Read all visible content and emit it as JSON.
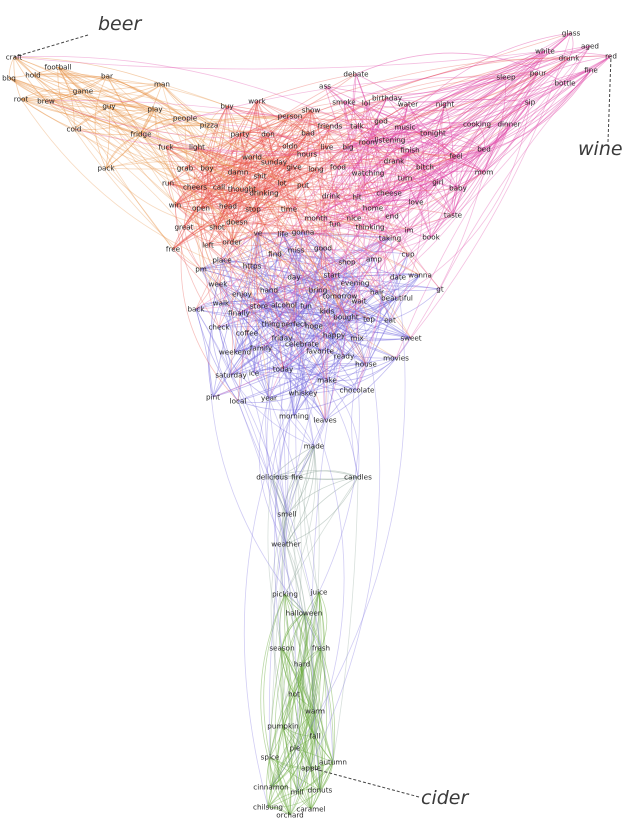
{
  "anchors": [
    {
      "label": "beer",
      "color": "#e8954a",
      "node": "craft"
    },
    {
      "label": "wine",
      "color": "#e04aa8",
      "node": "red"
    },
    {
      "label": "cider",
      "color": "#6aaa3e",
      "node": "apple"
    }
  ],
  "colors": {
    "beer": "#e8954a",
    "red": "#e8504a",
    "pink": "#e04aa8",
    "blue": "#7b6fe0",
    "grey": "#8ea59a",
    "green": "#6aaa3e"
  },
  "words": [
    "craft",
    "football",
    "hold",
    "bbq",
    "game",
    "root",
    "brew",
    "bar",
    "man",
    "guy",
    "cold",
    "play",
    "people",
    "pizza",
    "fridge",
    "fuck",
    "light",
    "pack",
    "buy",
    "work",
    "ass",
    "debate",
    "smoke",
    "lol",
    "birthday",
    "water",
    "night",
    "show",
    "person",
    "god",
    "friends",
    "talk",
    "music",
    "party",
    "don",
    "bad",
    "room",
    "listening",
    "tonight",
    "finish",
    "feel",
    "bed",
    "cooking",
    "dinner",
    "glass",
    "aged",
    "white",
    "drunk",
    "red",
    "fine",
    "sleep",
    "pour",
    "bottle",
    "sip",
    "world",
    "sunday",
    "oldn",
    "live",
    "big",
    "grab",
    "boy",
    "call",
    "thought",
    "damn",
    "shit",
    "give",
    "long",
    "food",
    "drank",
    "bitch",
    "mom",
    "girl",
    "baby",
    "run",
    "cheers",
    "drinking",
    "hours",
    "lot",
    "put",
    "watching",
    "turn",
    "win",
    "open",
    "head",
    "stop",
    "time",
    "month",
    "drink",
    "hit",
    "cheese",
    "love",
    "taste",
    "home",
    "end",
    "great",
    "shot",
    "doesn",
    "fun",
    "nice",
    "thinking",
    "im",
    "book",
    "free",
    "left",
    "order",
    "ve",
    "life",
    "gonna",
    "taking",
    "find",
    "miss",
    "good",
    "place",
    "https",
    "pm",
    "shop",
    "amp",
    "cup",
    "wanna",
    "week",
    "day",
    "start",
    "evening",
    "date",
    "gt",
    "walk",
    "enjoy",
    "hand",
    "bring",
    "tomorrow",
    "hair",
    "beautiful",
    "back",
    "finally",
    "store",
    "alcohol",
    "fun2",
    "kids",
    "wait",
    "check",
    "coffee",
    "thing",
    "perfect",
    "hope",
    "bought",
    "top",
    "eat",
    "sweet",
    "friday",
    "celebrate",
    "happy",
    "mix",
    "weekend",
    "family",
    "favorite",
    "ready",
    "house",
    "movies",
    "saturday",
    "ice",
    "today",
    "make",
    "chocolate",
    "pint",
    "local",
    "year",
    "whiskey",
    "morning",
    "leaves",
    "made",
    "delicious",
    "fire",
    "candles",
    "smell",
    "weather",
    "picking",
    "juice",
    "halloween",
    "season",
    "fresh",
    "hard",
    "hot",
    "warm",
    "pumpkin",
    "fall",
    "pie",
    "spice",
    "autumn",
    "apple",
    "cinnamon",
    "mill",
    "donuts",
    "chilsung",
    "caramel",
    "orchard"
  ],
  "nodes": [
    {
      "id": "craft",
      "text": "craft",
      "group": "beer"
    },
    {
      "id": "football",
      "text": "football",
      "group": "beer"
    },
    {
      "id": "hold",
      "text": "hold",
      "group": "beer"
    },
    {
      "id": "bbq",
      "text": "bbq",
      "group": "beer"
    },
    {
      "id": "game",
      "text": "game",
      "group": "beer"
    },
    {
      "id": "root",
      "text": "root",
      "group": "beer"
    },
    {
      "id": "brew",
      "text": "brew",
      "group": "beer"
    },
    {
      "id": "bar",
      "text": "bar",
      "group": "beer"
    },
    {
      "id": "man",
      "text": "man",
      "group": "beer"
    },
    {
      "id": "guy",
      "text": "guy",
      "group": "beer"
    },
    {
      "id": "cold",
      "text": "cold",
      "group": "beer"
    },
    {
      "id": "play",
      "text": "play",
      "group": "beer"
    },
    {
      "id": "people",
      "text": "people",
      "group": "beer"
    },
    {
      "id": "pizza",
      "text": "pizza",
      "group": "beer"
    },
    {
      "id": "fridge",
      "text": "fridge",
      "group": "beer"
    },
    {
      "id": "fuck",
      "text": "fuck",
      "group": "red"
    },
    {
      "id": "light",
      "text": "light",
      "group": "red"
    },
    {
      "id": "pack",
      "text": "pack",
      "group": "beer"
    },
    {
      "id": "buy",
      "text": "buy",
      "group": "red"
    },
    {
      "id": "work",
      "text": "work",
      "group": "red"
    },
    {
      "id": "ass",
      "text": "ass",
      "group": "pink"
    },
    {
      "id": "debate",
      "text": "debate",
      "group": "pink"
    },
    {
      "id": "smoke",
      "text": "smoke",
      "group": "pink"
    },
    {
      "id": "lol",
      "text": "lol",
      "group": "pink"
    },
    {
      "id": "birthday",
      "text": "birthday",
      "group": "pink"
    },
    {
      "id": "water",
      "text": "water",
      "group": "pink"
    },
    {
      "id": "night",
      "text": "night",
      "group": "pink"
    },
    {
      "id": "show",
      "text": "show",
      "group": "red"
    },
    {
      "id": "person",
      "text": "person",
      "group": "red"
    },
    {
      "id": "god",
      "text": "god",
      "group": "pink"
    },
    {
      "id": "friends",
      "text": "friends",
      "group": "red"
    },
    {
      "id": "talk",
      "text": "talk",
      "group": "pink"
    },
    {
      "id": "music",
      "text": "music",
      "group": "pink"
    },
    {
      "id": "party",
      "text": "party",
      "group": "red"
    },
    {
      "id": "don",
      "text": "don",
      "group": "red"
    },
    {
      "id": "bad",
      "text": "bad",
      "group": "red"
    },
    {
      "id": "room",
      "text": "room",
      "group": "pink"
    },
    {
      "id": "listening",
      "text": "listening",
      "group": "pink"
    },
    {
      "id": "tonight",
      "text": "tonight",
      "group": "pink"
    },
    {
      "id": "finish",
      "text": "finish",
      "group": "pink"
    },
    {
      "id": "feel",
      "text": "feel",
      "group": "pink"
    },
    {
      "id": "bed",
      "text": "bed",
      "group": "pink"
    },
    {
      "id": "cooking",
      "text": "cooking",
      "group": "pink"
    },
    {
      "id": "dinner",
      "text": "dinner",
      "group": "pink"
    },
    {
      "id": "glass",
      "text": "glass",
      "group": "pink"
    },
    {
      "id": "aged",
      "text": "aged",
      "group": "pink"
    },
    {
      "id": "white",
      "text": "white",
      "group": "pink"
    },
    {
      "id": "drunk",
      "text": "drunk",
      "group": "pink"
    },
    {
      "id": "red",
      "text": "red",
      "group": "pink"
    },
    {
      "id": "fine",
      "text": "fine",
      "group": "pink"
    },
    {
      "id": "sleep",
      "text": "sleep",
      "group": "pink"
    },
    {
      "id": "pour",
      "text": "pour",
      "group": "pink"
    },
    {
      "id": "bottle",
      "text": "bottle",
      "group": "pink"
    },
    {
      "id": "sip",
      "text": "sip",
      "group": "pink"
    },
    {
      "id": "world",
      "text": "world",
      "group": "red"
    },
    {
      "id": "sunday",
      "text": "sunday",
      "group": "red"
    },
    {
      "id": "oldn",
      "text": "oldn",
      "group": "red"
    },
    {
      "id": "live",
      "text": "live",
      "group": "red"
    },
    {
      "id": "big",
      "text": "big",
      "group": "pink"
    },
    {
      "id": "grab",
      "text": "grab",
      "group": "red"
    },
    {
      "id": "boy",
      "text": "boy",
      "group": "red"
    },
    {
      "id": "call",
      "text": "call",
      "group": "red"
    },
    {
      "id": "thought",
      "text": "thought",
      "group": "red"
    },
    {
      "id": "damn",
      "text": "damn",
      "group": "red"
    },
    {
      "id": "shit",
      "text": "shit",
      "group": "red"
    },
    {
      "id": "give",
      "text": "give",
      "group": "red"
    },
    {
      "id": "long",
      "text": "long",
      "group": "red"
    },
    {
      "id": "food",
      "text": "food",
      "group": "pink"
    },
    {
      "id": "drank",
      "text": "drank",
      "group": "pink"
    },
    {
      "id": "bitch",
      "text": "bitch",
      "group": "pink"
    },
    {
      "id": "mom",
      "text": "mom",
      "group": "pink"
    },
    {
      "id": "girl",
      "text": "girl",
      "group": "pink"
    },
    {
      "id": "baby",
      "text": "baby",
      "group": "pink"
    },
    {
      "id": "run",
      "text": "run",
      "group": "red"
    },
    {
      "id": "cheers",
      "text": "cheers",
      "group": "red"
    },
    {
      "id": "drinking",
      "text": "drinking",
      "group": "red"
    },
    {
      "id": "hours",
      "text": "hours",
      "group": "red"
    },
    {
      "id": "lot",
      "text": "lot",
      "group": "red"
    },
    {
      "id": "put",
      "text": "put",
      "group": "red"
    },
    {
      "id": "watching",
      "text": "watching",
      "group": "pink"
    },
    {
      "id": "turn",
      "text": "turn",
      "group": "pink"
    },
    {
      "id": "win",
      "text": "win",
      "group": "red"
    },
    {
      "id": "open",
      "text": "open",
      "group": "red"
    },
    {
      "id": "head",
      "text": "head",
      "group": "red"
    },
    {
      "id": "stop",
      "text": "stop",
      "group": "red"
    },
    {
      "id": "time",
      "text": "time",
      "group": "red"
    },
    {
      "id": "month",
      "text": "month",
      "group": "pink"
    },
    {
      "id": "drink",
      "text": "drink",
      "group": "pink"
    },
    {
      "id": "hit",
      "text": "hit",
      "group": "pink"
    },
    {
      "id": "cheese",
      "text": "cheese",
      "group": "pink"
    },
    {
      "id": "love",
      "text": "love",
      "group": "pink"
    },
    {
      "id": "taste",
      "text": "taste",
      "group": "pink"
    },
    {
      "id": "home",
      "text": "home",
      "group": "pink"
    },
    {
      "id": "end",
      "text": "end",
      "group": "pink"
    },
    {
      "id": "great",
      "text": "great",
      "group": "red"
    },
    {
      "id": "shot",
      "text": "shot",
      "group": "red"
    },
    {
      "id": "doesn",
      "text": "doesn",
      "group": "red"
    },
    {
      "id": "fun",
      "text": "fun",
      "group": "pink"
    },
    {
      "id": "nice",
      "text": "nice",
      "group": "pink"
    },
    {
      "id": "thinking",
      "text": "thinking",
      "group": "pink"
    },
    {
      "id": "im",
      "text": "im",
      "group": "pink"
    },
    {
      "id": "book",
      "text": "book",
      "group": "pink"
    },
    {
      "id": "free",
      "text": "free",
      "group": "red"
    },
    {
      "id": "left",
      "text": "left",
      "group": "red"
    },
    {
      "id": "order",
      "text": "order",
      "group": "red"
    },
    {
      "id": "ve",
      "text": "ve",
      "group": "blue"
    },
    {
      "id": "life",
      "text": "life",
      "group": "blue"
    },
    {
      "id": "gonna",
      "text": "gonna",
      "group": "blue"
    },
    {
      "id": "taking",
      "text": "taking",
      "group": "blue"
    },
    {
      "id": "find",
      "text": "find",
      "group": "blue"
    },
    {
      "id": "miss",
      "text": "miss",
      "group": "blue"
    },
    {
      "id": "good",
      "text": "good",
      "group": "blue"
    },
    {
      "id": "place",
      "text": "place",
      "group": "blue"
    },
    {
      "id": "https",
      "text": "https",
      "group": "blue"
    },
    {
      "id": "pm",
      "text": "pm",
      "group": "blue"
    },
    {
      "id": "shop",
      "text": "shop",
      "group": "blue"
    },
    {
      "id": "amp",
      "text": "amp",
      "group": "blue"
    },
    {
      "id": "cup",
      "text": "cup",
      "group": "blue"
    },
    {
      "id": "wanna",
      "text": "wanna",
      "group": "blue"
    },
    {
      "id": "week",
      "text": "week",
      "group": "blue"
    },
    {
      "id": "day",
      "text": "day",
      "group": "blue"
    },
    {
      "id": "start",
      "text": "start",
      "group": "blue"
    },
    {
      "id": "evening",
      "text": "evening",
      "group": "blue"
    },
    {
      "id": "date",
      "text": "date",
      "group": "blue"
    },
    {
      "id": "gt",
      "text": "gt",
      "group": "blue"
    },
    {
      "id": "walk",
      "text": "walk",
      "group": "blue"
    },
    {
      "id": "enjoy",
      "text": "enjoy",
      "group": "blue"
    },
    {
      "id": "hand",
      "text": "hand",
      "group": "blue"
    },
    {
      "id": "bring",
      "text": "bring",
      "group": "blue"
    },
    {
      "id": "tomorrow",
      "text": "tomorrow",
      "group": "blue"
    },
    {
      "id": "hair",
      "text": "hair",
      "group": "blue"
    },
    {
      "id": "beautiful",
      "text": "beautiful",
      "group": "blue"
    },
    {
      "id": "back",
      "text": "back",
      "group": "blue"
    },
    {
      "id": "finally",
      "text": "finally",
      "group": "blue"
    },
    {
      "id": "store",
      "text": "store",
      "group": "blue"
    },
    {
      "id": "alcohol",
      "text": "alcohol",
      "group": "blue"
    },
    {
      "id": "fun2",
      "text": "fun",
      "group": "blue"
    },
    {
      "id": "kids",
      "text": "kids",
      "group": "blue"
    },
    {
      "id": "wait",
      "text": "wait",
      "group": "blue"
    },
    {
      "id": "check",
      "text": "check",
      "group": "blue"
    },
    {
      "id": "coffee",
      "text": "coffee",
      "group": "blue"
    },
    {
      "id": "thing",
      "text": "thing",
      "group": "blue"
    },
    {
      "id": "perfect",
      "text": "perfect",
      "group": "blue"
    },
    {
      "id": "hope",
      "text": "hope",
      "group": "blue"
    },
    {
      "id": "bought",
      "text": "bought",
      "group": "blue"
    },
    {
      "id": "top",
      "text": "top",
      "group": "blue"
    },
    {
      "id": "eat",
      "text": "eat",
      "group": "blue"
    },
    {
      "id": "sweet",
      "text": "sweet",
      "group": "blue"
    },
    {
      "id": "friday",
      "text": "friday",
      "group": "blue"
    },
    {
      "id": "celebrate",
      "text": "celebrate",
      "group": "blue"
    },
    {
      "id": "happy",
      "text": "happy",
      "group": "blue"
    },
    {
      "id": "mix",
      "text": "mix",
      "group": "blue"
    },
    {
      "id": "weekend",
      "text": "weekend",
      "group": "blue"
    },
    {
      "id": "family",
      "text": "family",
      "group": "blue"
    },
    {
      "id": "favorite",
      "text": "favorite",
      "group": "blue"
    },
    {
      "id": "ready",
      "text": "ready",
      "group": "blue"
    },
    {
      "id": "house",
      "text": "house",
      "group": "blue"
    },
    {
      "id": "movies",
      "text": "movies",
      "group": "blue"
    },
    {
      "id": "saturday",
      "text": "saturday",
      "group": "blue"
    },
    {
      "id": "ice",
      "text": "ice",
      "group": "blue"
    },
    {
      "id": "today",
      "text": "today",
      "group": "blue"
    },
    {
      "id": "make",
      "text": "make",
      "group": "blue"
    },
    {
      "id": "chocolate",
      "text": "chocolate",
      "group": "blue"
    },
    {
      "id": "pint",
      "text": "pint",
      "group": "blue"
    },
    {
      "id": "local",
      "text": "local",
      "group": "blue"
    },
    {
      "id": "year",
      "text": "year",
      "group": "blue"
    },
    {
      "id": "whiskey",
      "text": "whiskey",
      "group": "blue"
    },
    {
      "id": "morning",
      "text": "morning",
      "group": "blue"
    },
    {
      "id": "leaves",
      "text": "leaves",
      "group": "blue"
    },
    {
      "id": "made",
      "text": "made",
      "group": "grey"
    },
    {
      "id": "delicious",
      "text": "delicious",
      "group": "grey"
    },
    {
      "id": "fire",
      "text": "fire",
      "group": "grey"
    },
    {
      "id": "candles",
      "text": "candles",
      "group": "grey"
    },
    {
      "id": "smell",
      "text": "smell",
      "group": "grey"
    },
    {
      "id": "weather",
      "text": "weather",
      "group": "grey"
    },
    {
      "id": "picking",
      "text": "picking",
      "group": "green"
    },
    {
      "id": "juice",
      "text": "juice",
      "group": "green"
    },
    {
      "id": "halloween",
      "text": "halloween",
      "group": "green"
    },
    {
      "id": "season",
      "text": "season",
      "group": "green"
    },
    {
      "id": "fresh",
      "text": "fresh",
      "group": "green"
    },
    {
      "id": "hard",
      "text": "hard",
      "group": "green"
    },
    {
      "id": "hot",
      "text": "hot",
      "group": "green"
    },
    {
      "id": "warm",
      "text": "warm",
      "group": "green"
    },
    {
      "id": "pumpkin",
      "text": "pumpkin",
      "group": "green"
    },
    {
      "id": "fall",
      "text": "fall",
      "group": "green"
    },
    {
      "id": "pie",
      "text": "pie",
      "group": "green"
    },
    {
      "id": "spice",
      "text": "spice",
      "group": "green"
    },
    {
      "id": "autumn",
      "text": "autumn",
      "group": "green"
    },
    {
      "id": "apple",
      "text": "apple",
      "group": "green"
    },
    {
      "id": "cinnamon",
      "text": "cinnamon",
      "group": "green"
    },
    {
      "id": "mill",
      "text": "mill",
      "group": "green"
    },
    {
      "id": "donuts",
      "text": "donuts",
      "group": "green"
    },
    {
      "id": "chilsung",
      "text": "chilsung",
      "group": "green"
    },
    {
      "id": "caramel",
      "text": "caramel",
      "group": "green"
    },
    {
      "id": "orchard",
      "text": "orchard",
      "group": "green"
    }
  ]
}
